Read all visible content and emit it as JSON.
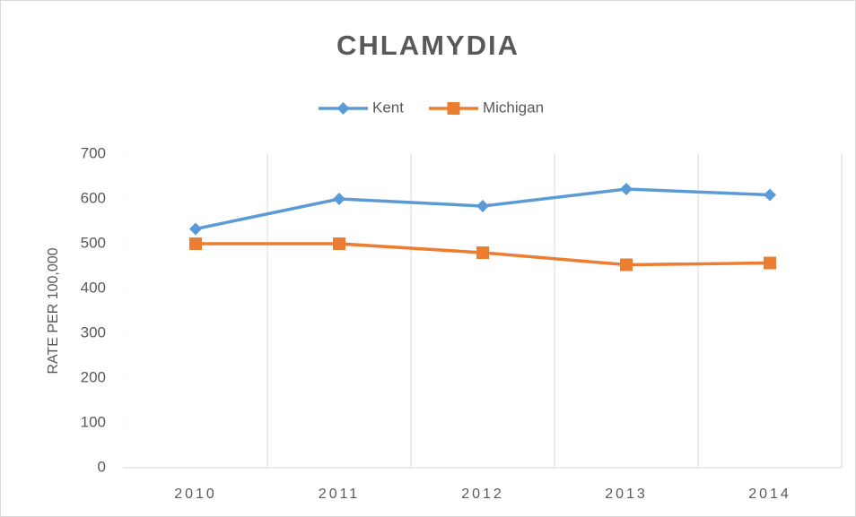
{
  "chart_data": {
    "type": "line",
    "title": "CHLAMYDIA",
    "y_label": "RATE PER 100,000",
    "categories": [
      "2010",
      "2011",
      "2012",
      "2013",
      "2014"
    ],
    "series": [
      {
        "name": "Kent",
        "color": "#5b9bd5",
        "marker": "diamond",
        "values": [
          533,
          600,
          584,
          622,
          609
        ]
      },
      {
        "name": "Michigan",
        "color": "#ed7d31",
        "marker": "square",
        "values": [
          500,
          500,
          480,
          453,
          457
        ]
      }
    ],
    "ylim": [
      0,
      700
    ],
    "yticks": [
      0,
      100,
      200,
      300,
      400,
      500,
      600,
      700
    ],
    "xgrid": true,
    "legend": "top"
  }
}
